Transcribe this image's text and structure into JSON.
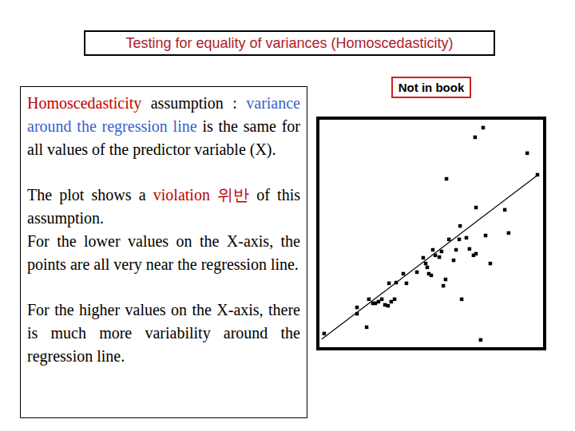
{
  "header": {
    "title": "Testing for equality of variances (Homoscedasticity)"
  },
  "note": "Not in book",
  "text_box": {
    "paragraphs": [
      [
        {
          "text": "Homoscedasticity",
          "color": "#c00000"
        },
        {
          "text": " assumption : "
        },
        {
          "text": "variance around the regression line",
          "color": "#3a5fcd"
        },
        {
          "text": " is the same for all values of the predictor variable (X)."
        }
      ],
      [
        {
          "text": "The plot shows a "
        },
        {
          "text": "violation 위반",
          "color": "#c00000"
        },
        {
          "text": " of this assumption."
        }
      ],
      [
        {
          "text": "For the lower values on the X-axis, the points are all very near the regression line."
        }
      ],
      [
        {
          "text": "For the higher values on the X-axis, there is much more variability around the regression line."
        }
      ]
    ]
  },
  "chart_data": {
    "type": "scatter",
    "xlim": [
      0,
      100
    ],
    "ylim": [
      0,
      100
    ],
    "tick_labels": false,
    "grid": false,
    "series": [
      {
        "type": "scatter",
        "marker": "square",
        "color": "#000000",
        "x": [
          2.1,
          16.8,
          16.8,
          21.1,
          22.1,
          23.9,
          25.0,
          26.4,
          27.9,
          29.3,
          30.7,
          31.1,
          32.1,
          33.6,
          34.3,
          37.5,
          38.9,
          43.6,
          46.4,
          47.5,
          48.2,
          48.9,
          50.0,
          50.7,
          51.8,
          53.6,
          54.6,
          55.4,
          56.4,
          56.8,
          57.9,
          60.0,
          61.1,
          62.5,
          62.9,
          63.6,
          65.7,
          67.1,
          68.9,
          70.0,
          69.6,
          70.0,
          72.1,
          73.2,
          74.3,
          76.4,
          82.9,
          84.6,
          92.9,
          97.5
        ],
        "values": [
          6.0,
          17.5,
          14.7,
          8.8,
          21.1,
          19.3,
          19.3,
          20.0,
          21.1,
          18.6,
          18.2,
          28.1,
          20.0,
          21.1,
          28.4,
          32.3,
          28.1,
          33.0,
          39.3,
          36.8,
          35.1,
          32.3,
          31.6,
          42.8,
          40.4,
          39.6,
          42.1,
          27.0,
          29.8,
          74.0,
          47.4,
          38.2,
          42.8,
          47.4,
          53.3,
          21.1,
          48.1,
          43.2,
          40.4,
          41.1,
          92.3,
          61.4,
          3.2,
          96.5,
          49.1,
          36.8,
          60.4,
          50.2,
          85.3,
          75.8
        ]
      },
      {
        "type": "line",
        "line_style": "solid",
        "color": "#000000",
        "x": [
          1,
          98
        ],
        "values": [
          3.5,
          76
        ]
      }
    ]
  }
}
